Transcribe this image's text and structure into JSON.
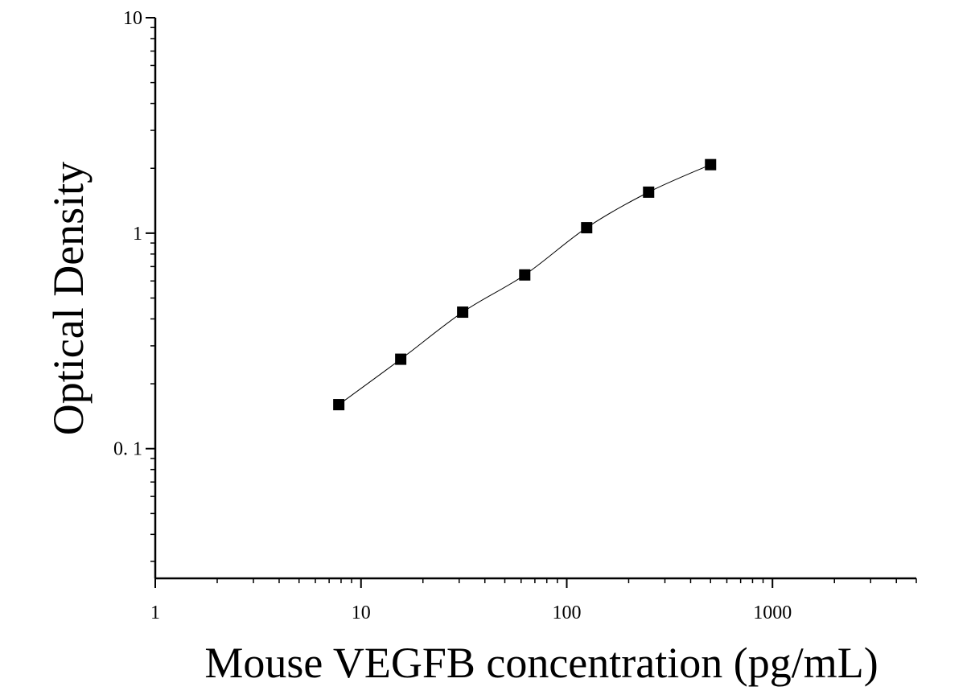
{
  "chart_data": {
    "type": "scatter",
    "xlabel": "Mouse VEGFB concentration (pg/mL)",
    "ylabel": "Optical Density",
    "x_scale": "log",
    "y_scale": "log",
    "xlim": [
      1,
      5000
    ],
    "ylim": [
      0.025,
      10
    ],
    "x_ticks": [
      {
        "value": 1,
        "label": "1"
      },
      {
        "value": 10,
        "label": "10"
      },
      {
        "value": 100,
        "label": "100"
      },
      {
        "value": 1000,
        "label": "1000"
      }
    ],
    "y_ticks": [
      {
        "value": 0.1,
        "label": "0. 1"
      },
      {
        "value": 1,
        "label": "1"
      },
      {
        "value": 10,
        "label": "10"
      }
    ],
    "grid": false,
    "series": [
      {
        "marker": "square",
        "fit_line": true,
        "color": "#000000",
        "points": [
          {
            "x": 7.8,
            "y": 0.16
          },
          {
            "x": 15.6,
            "y": 0.26
          },
          {
            "x": 31.2,
            "y": 0.43
          },
          {
            "x": 62.5,
            "y": 0.64
          },
          {
            "x": 125,
            "y": 1.06
          },
          {
            "x": 250,
            "y": 1.55
          },
          {
            "x": 500,
            "y": 2.08
          }
        ]
      }
    ]
  }
}
